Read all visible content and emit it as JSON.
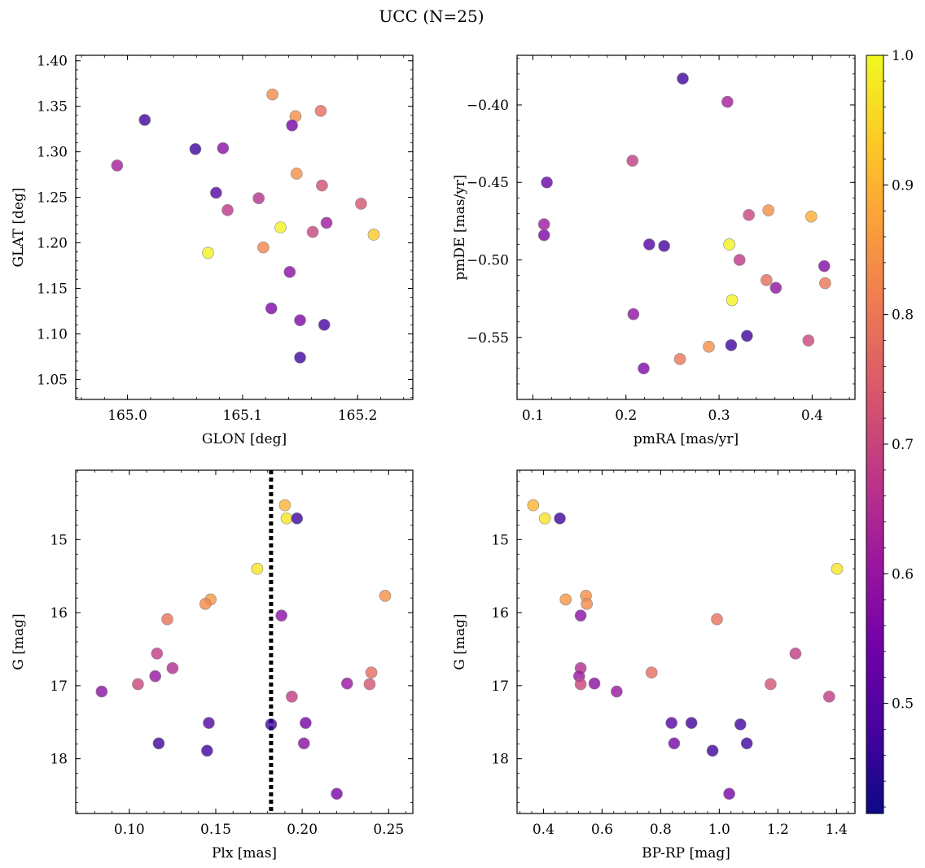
{
  "figure": {
    "title": "UCC (N=25)"
  },
  "chart_data": [
    {
      "type": "scatter",
      "xlabel": "GLON [deg]",
      "ylabel": "GLAT [deg]",
      "xlim": [
        164.955,
        165.248
      ],
      "ylim": [
        1.028,
        1.406
      ],
      "xticks": [
        165.0,
        165.1,
        165.2
      ],
      "xtick_labels": [
        "165.0",
        "165.1",
        "165.2"
      ],
      "yticks": [
        1.05,
        1.1,
        1.15,
        1.2,
        1.25,
        1.3,
        1.35,
        1.4
      ],
      "ytick_labels": [
        "1.05",
        "1.10",
        "1.15",
        "1.20",
        "1.25",
        "1.30",
        "1.35",
        "1.40"
      ],
      "x": [
        165.126,
        165.146,
        165.168,
        165.015,
        165.143,
        164.991,
        165.059,
        165.083,
        165.147,
        165.169,
        165.077,
        165.114,
        165.087,
        165.203,
        165.133,
        165.173,
        165.161,
        165.214,
        165.118,
        165.07,
        165.141,
        165.125,
        165.15,
        165.171,
        165.15
      ],
      "y": [
        1.363,
        1.339,
        1.345,
        1.335,
        1.329,
        1.285,
        1.303,
        1.304,
        1.276,
        1.263,
        1.255,
        1.249,
        1.236,
        1.243,
        1.217,
        1.222,
        1.212,
        1.209,
        1.195,
        1.189,
        1.168,
        1.128,
        1.115,
        1.11,
        1.074
      ],
      "c": [
        0.83,
        0.84,
        0.78,
        0.47,
        0.55,
        0.62,
        0.47,
        0.58,
        0.84,
        0.72,
        0.5,
        0.66,
        0.67,
        0.73,
        0.99,
        0.61,
        0.7,
        0.93,
        0.82,
        0.99,
        0.58,
        0.56,
        0.56,
        0.48,
        0.47
      ]
    },
    {
      "type": "scatter",
      "xlabel": "pmRA [mas/yr]",
      "ylabel": "pmDE [mas/yr]",
      "xlim": [
        0.083,
        0.446
      ],
      "ylim": [
        -0.59,
        -0.368
      ],
      "xticks": [
        0.1,
        0.2,
        0.3,
        0.4
      ],
      "xtick_labels": [
        "0.1",
        "0.2",
        "0.3",
        "0.4"
      ],
      "yticks": [
        -0.55,
        -0.5,
        -0.45,
        -0.4
      ],
      "ytick_labels": [
        "−0.55",
        "−0.50",
        "−0.45",
        "−0.40"
      ],
      "x": [
        0.261,
        0.309,
        0.207,
        0.115,
        0.112,
        0.112,
        0.225,
        0.241,
        0.332,
        0.353,
        0.399,
        0.311,
        0.322,
        0.413,
        0.351,
        0.361,
        0.208,
        0.314,
        0.33,
        0.313,
        0.396,
        0.258,
        0.289,
        0.219,
        0.414
      ],
      "y": [
        -0.383,
        -0.398,
        -0.436,
        -0.45,
        -0.477,
        -0.484,
        -0.49,
        -0.491,
        -0.471,
        -0.468,
        -0.472,
        -0.49,
        -0.5,
        -0.504,
        -0.513,
        -0.518,
        -0.535,
        -0.526,
        -0.549,
        -0.555,
        -0.552,
        -0.564,
        -0.556,
        -0.57,
        -0.515
      ],
      "c": [
        0.47,
        0.62,
        0.68,
        0.53,
        0.61,
        0.56,
        0.5,
        0.48,
        0.7,
        0.84,
        0.89,
        0.99,
        0.67,
        0.57,
        0.78,
        0.59,
        0.59,
        0.99,
        0.47,
        0.47,
        0.7,
        0.8,
        0.84,
        0.56,
        0.8
      ]
    },
    {
      "type": "scatter",
      "xlabel": "Plx [mas]",
      "ylabel": "G [mag]",
      "xlim": [
        0.069,
        0.264
      ],
      "ylim": [
        18.75,
        14.05
      ],
      "y_inverted": true,
      "xticks": [
        0.1,
        0.15,
        0.2,
        0.25
      ],
      "xtick_labels": [
        "0.10",
        "0.15",
        "0.20",
        "0.25"
      ],
      "yticks": [
        15,
        16,
        17,
        18
      ],
      "ytick_labels": [
        "15",
        "16",
        "17",
        "18"
      ],
      "vline": {
        "x": 0.182,
        "style": "dotted",
        "color": "#000000"
      },
      "x": [
        0.19,
        0.191,
        0.197,
        0.174,
        0.147,
        0.144,
        0.248,
        0.122,
        0.188,
        0.116,
        0.125,
        0.115,
        0.105,
        0.084,
        0.194,
        0.226,
        0.24,
        0.239,
        0.146,
        0.182,
        0.202,
        0.117,
        0.145,
        0.201,
        0.22
      ],
      "y": [
        14.53,
        14.71,
        14.71,
        15.4,
        15.82,
        15.88,
        15.77,
        16.09,
        16.04,
        16.56,
        16.76,
        16.87,
        16.98,
        17.08,
        17.15,
        16.97,
        16.82,
        16.98,
        17.51,
        17.53,
        17.51,
        17.79,
        17.89,
        17.79,
        18.48
      ],
      "c": [
        0.9,
        0.97,
        0.47,
        0.97,
        0.85,
        0.83,
        0.84,
        0.79,
        0.58,
        0.68,
        0.65,
        0.6,
        0.7,
        0.58,
        0.68,
        0.6,
        0.78,
        0.73,
        0.5,
        0.47,
        0.55,
        0.47,
        0.47,
        0.58,
        0.55
      ]
    },
    {
      "type": "scatter",
      "xlabel": "BP-RP [mag]",
      "ylabel": "G [mag]",
      "xlim": [
        0.31,
        1.463
      ],
      "ylim": [
        18.75,
        14.05
      ],
      "y_inverted": true,
      "xticks": [
        0.4,
        0.6,
        0.8,
        1.0,
        1.2,
        1.4
      ],
      "xtick_labels": [
        "0.4",
        "0.6",
        "0.8",
        "1.0",
        "1.2",
        "1.4"
      ],
      "yticks": [
        15,
        16,
        17,
        18
      ],
      "ytick_labels": [
        "15",
        "16",
        "17",
        "18"
      ],
      "x": [
        0.365,
        0.405,
        0.456,
        1.402,
        0.476,
        0.545,
        0.548,
        0.992,
        0.527,
        1.26,
        0.527,
        0.522,
        0.527,
        0.574,
        0.65,
        0.769,
        1.175,
        1.375,
        0.837,
        0.905,
        1.072,
        0.846,
        0.977,
        1.094,
        1.034
      ],
      "y": [
        14.53,
        14.71,
        14.71,
        15.4,
        15.82,
        15.77,
        15.88,
        16.09,
        16.04,
        16.56,
        16.76,
        16.87,
        16.98,
        16.97,
        17.08,
        16.82,
        16.98,
        17.15,
        17.51,
        17.51,
        17.53,
        17.79,
        17.89,
        17.79,
        18.48
      ],
      "c": [
        0.9,
        0.97,
        0.47,
        0.97,
        0.85,
        0.84,
        0.83,
        0.79,
        0.58,
        0.68,
        0.65,
        0.6,
        0.7,
        0.58,
        0.6,
        0.78,
        0.73,
        0.68,
        0.5,
        0.47,
        0.47,
        0.55,
        0.47,
        0.47,
        0.55
      ]
    }
  ],
  "colorbar": {
    "cmap": "plasma",
    "vmin": 0.415,
    "vmax": 1.0,
    "ticks": [
      0.5,
      0.6,
      0.7,
      0.8,
      0.9,
      1.0
    ],
    "tick_labels": [
      "0.5",
      "0.6",
      "0.7",
      "0.8",
      "0.9",
      "1.0"
    ],
    "stops": [
      "#0d0887",
      "#46039f",
      "#7201a8",
      "#9c179e",
      "#bd3786",
      "#d8576b",
      "#ed7953",
      "#fb9f3a",
      "#fdca26",
      "#f0f921"
    ]
  },
  "style": {
    "marker_edge": "#888888",
    "marker_alpha": 0.8,
    "vline_color": "#000000"
  }
}
